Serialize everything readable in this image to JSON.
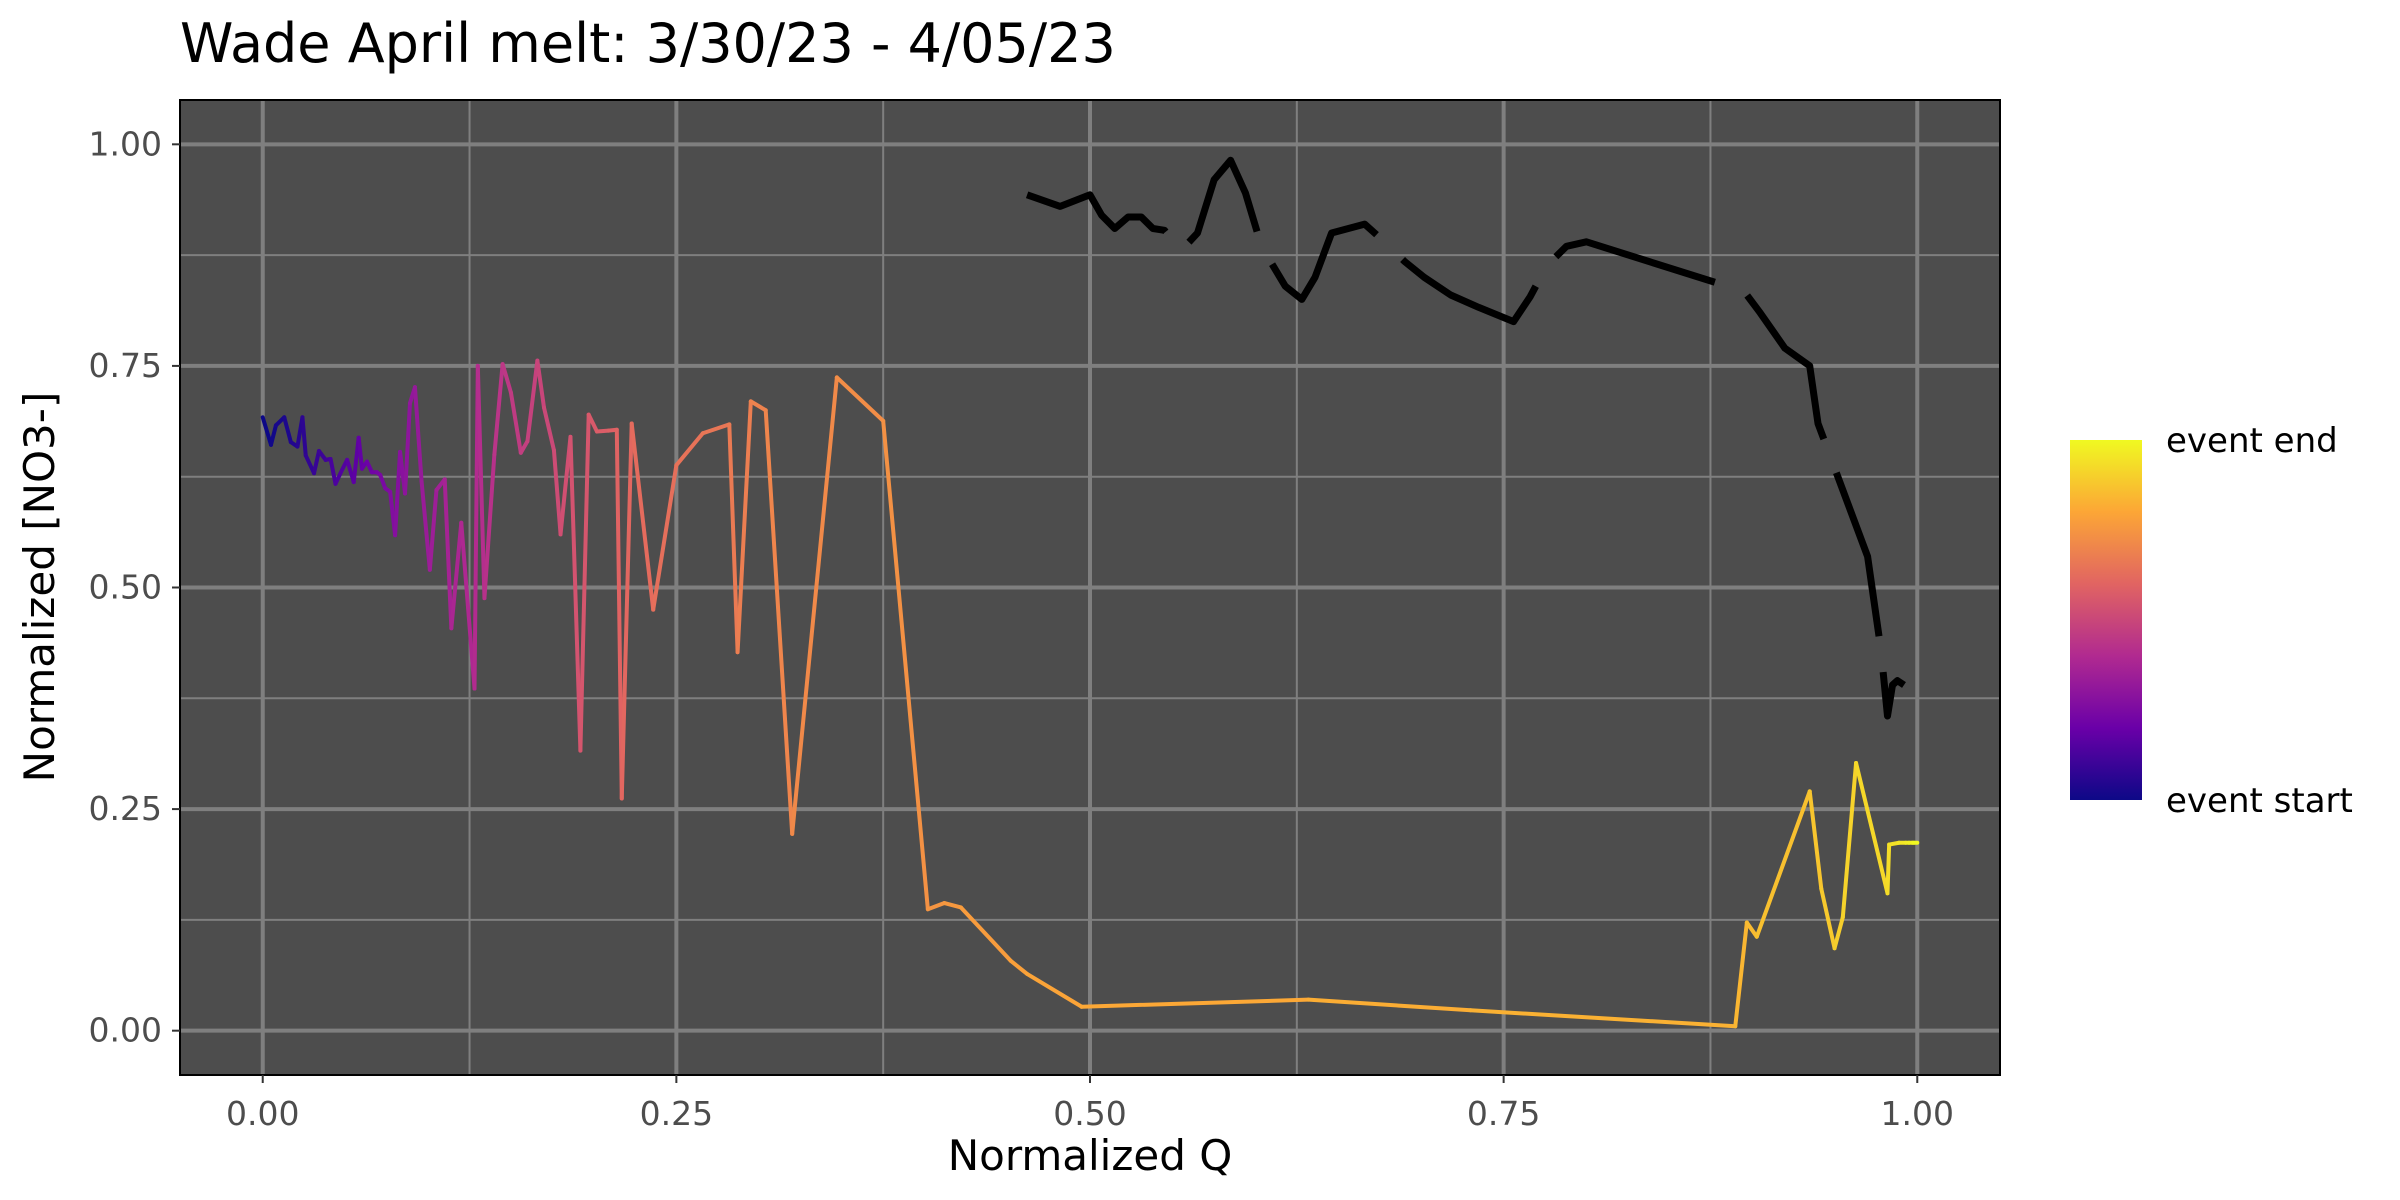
{
  "chart_data": {
    "type": "line",
    "title": "Wade April melt: 3/30/23 - 4/05/23",
    "xlabel": "Normalized Q",
    "ylabel": "Normalized [NO3-]",
    "xlim": [
      -0.05,
      1.05
    ],
    "ylim": [
      -0.05,
      1.05
    ],
    "x_ticks": [
      0.0,
      0.25,
      0.5,
      0.75,
      1.0
    ],
    "x_tick_labels": [
      "0.00",
      "0.25",
      "0.50",
      "0.75",
      "1.00"
    ],
    "y_ticks": [
      0.0,
      0.25,
      0.5,
      0.75,
      1.0
    ],
    "y_tick_labels": [
      "0.00",
      "0.25",
      "0.50",
      "0.75",
      "1.00"
    ],
    "grid": true,
    "panel_background": "#4d4d4d",
    "legend": {
      "placement": "right",
      "type": "colorbar",
      "labels": [
        "event end",
        "event start"
      ],
      "colormap": [
        "#0d0887",
        "#6a00a8",
        "#b12a90",
        "#e16462",
        "#fca636",
        "#f0f921"
      ]
    },
    "series": [
      {
        "style": "gradient-line",
        "x": [
          0.0,
          0.005,
          0.008,
          0.013,
          0.017,
          0.021,
          0.024,
          0.026,
          0.031,
          0.034,
          0.038,
          0.041,
          0.044,
          0.047,
          0.051,
          0.055,
          0.058,
          0.06,
          0.063,
          0.066,
          0.069,
          0.071,
          0.074,
          0.077,
          0.08,
          0.083,
          0.086,
          0.089,
          0.092,
          0.096,
          0.101,
          0.105,
          0.11,
          0.114,
          0.12,
          0.128,
          0.13,
          0.134,
          0.14,
          0.145,
          0.15,
          0.156,
          0.16,
          0.166,
          0.17,
          0.176,
          0.18,
          0.186,
          0.192,
          0.197,
          0.202,
          0.209,
          0.214,
          0.217,
          0.223,
          0.236,
          0.25,
          0.266,
          0.282,
          0.287,
          0.295,
          0.304,
          0.32,
          0.347,
          0.375,
          0.402,
          0.412,
          0.422,
          0.452,
          0.462,
          0.495,
          0.632,
          0.73,
          0.89,
          0.897,
          0.903,
          0.935,
          0.942,
          0.95,
          0.955,
          0.963,
          0.982,
          0.983,
          0.989,
          0.993,
          0.995,
          0.997,
          0.998,
          1.0
        ],
        "y": [
          0.692,
          0.661,
          0.683,
          0.692,
          0.664,
          0.659,
          0.692,
          0.649,
          0.629,
          0.654,
          0.644,
          0.645,
          0.617,
          0.629,
          0.644,
          0.619,
          0.669,
          0.634,
          0.642,
          0.63,
          0.63,
          0.627,
          0.612,
          0.608,
          0.559,
          0.653,
          0.606,
          0.708,
          0.726,
          0.62,
          0.52,
          0.61,
          0.622,
          0.454,
          0.573,
          0.386,
          0.75,
          0.488,
          0.65,
          0.752,
          0.72,
          0.652,
          0.665,
          0.756,
          0.703,
          0.655,
          0.56,
          0.67,
          0.316,
          0.695,
          0.676,
          0.677,
          0.678,
          0.262,
          0.685,
          0.475,
          0.638,
          0.674,
          0.684,
          0.427,
          0.71,
          0.7,
          0.222,
          0.737,
          0.688,
          0.137,
          0.144,
          0.139,
          0.079,
          0.064,
          0.027,
          0.035,
          0.023,
          0.005,
          0.122,
          0.106,
          0.27,
          0.16,
          0.093,
          0.128,
          0.302,
          0.155,
          0.21,
          0.212,
          0.212,
          0.212,
          0.212,
          0.212,
          0.212
        ]
      },
      {
        "style": "black-dashed",
        "x": [
          0.462,
          0.482,
          0.5,
          0.507,
          0.515,
          0.523,
          0.531,
          0.538,
          0.545,
          0.555,
          0.565,
          0.575,
          0.585,
          0.594,
          0.602,
          0.61,
          0.618,
          0.628,
          0.636,
          0.646,
          0.666,
          0.678,
          0.69,
          0.702,
          0.718,
          0.735,
          0.756,
          0.766,
          0.776,
          0.788,
          0.8,
          0.885,
          0.895,
          0.905,
          0.92,
          0.935,
          0.94,
          0.97,
          0.978,
          0.982,
          0.985,
          0.988,
          0.992
        ],
        "y": [
          0.943,
          0.93,
          0.943,
          0.92,
          0.905,
          0.918,
          0.918,
          0.905,
          0.903,
          0.88,
          0.9,
          0.96,
          0.982,
          0.945,
          0.895,
          0.865,
          0.84,
          0.825,
          0.85,
          0.9,
          0.91,
          0.89,
          0.868,
          0.85,
          0.83,
          0.816,
          0.8,
          0.828,
          0.863,
          0.885,
          0.89,
          0.84,
          0.835,
          0.81,
          0.77,
          0.75,
          0.685,
          0.535,
          0.43,
          0.355,
          0.39,
          0.395,
          0.39
        ]
      }
    ]
  }
}
